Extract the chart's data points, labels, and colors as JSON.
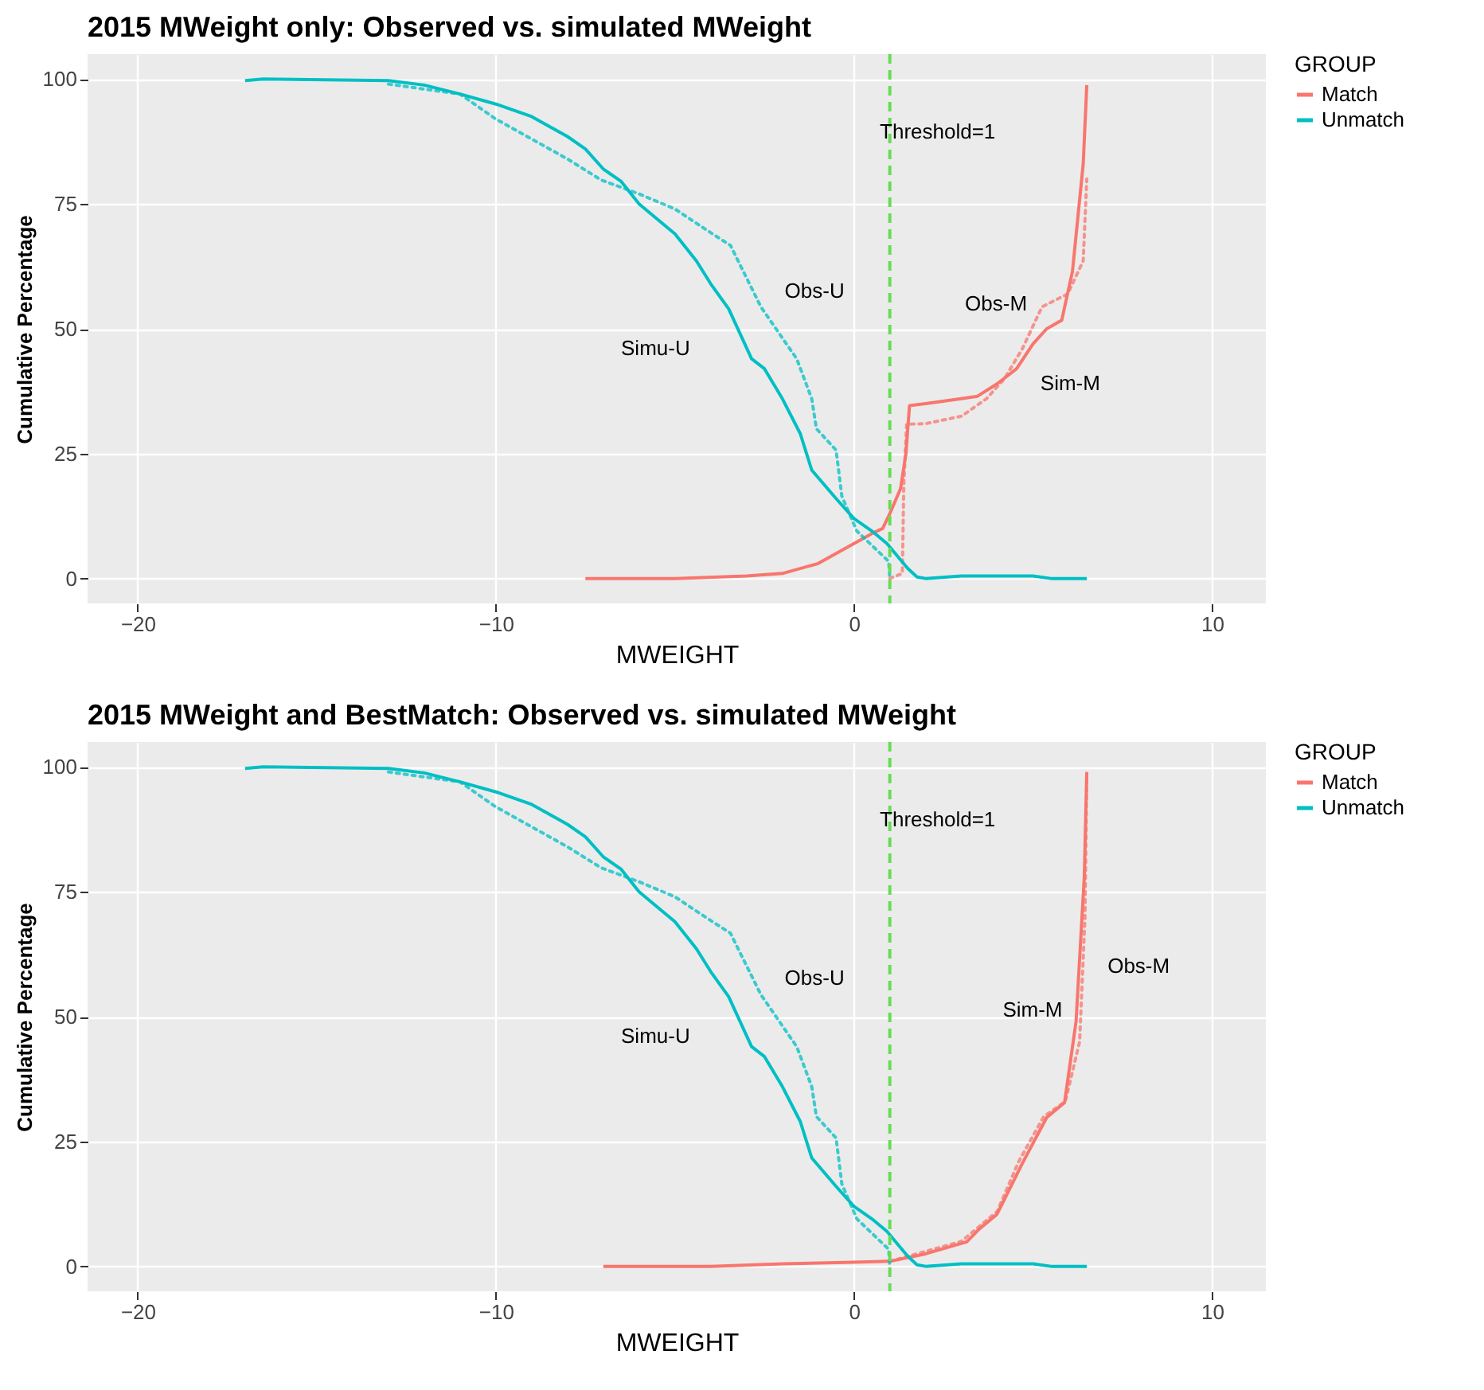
{
  "chart_data": [
    {
      "type": "line",
      "title": "2015 MWeight only: Observed vs. simulated MWeight",
      "xlabel": "MWEIGHT",
      "ylabel": "Cumulative Percentage",
      "legend_title": "GROUP",
      "legend": "right",
      "grid": true,
      "xlim": [
        -21.4,
        11.5
      ],
      "ylim": [
        -5,
        105
      ],
      "xticks": [
        -20,
        -10,
        0,
        10
      ],
      "yticks": [
        0,
        25,
        50,
        75,
        100
      ],
      "series": [
        {
          "name": "Match",
          "color": "#f8766d",
          "line_style": "solid",
          "x": [
            -7.5,
            -5,
            -3,
            -2,
            -1,
            0,
            0.5,
            0.8,
            1.0,
            1.3,
            1.45,
            1.55,
            2,
            3,
            3.45,
            4,
            4.54,
            5,
            5.38,
            5.8,
            6.1,
            6.4,
            6.5
          ],
          "values": [
            0,
            0,
            0.5,
            1,
            3,
            7,
            9,
            10,
            13,
            18,
            25,
            34.6,
            35,
            36,
            36.5,
            39,
            42,
            47,
            50,
            51.7,
            61.5,
            83,
            98.8
          ]
        },
        {
          "color": "#f8766d",
          "line_style": "dotted",
          "x": [
            1.0,
            1.35,
            1.39,
            1.47,
            2,
            3,
            3.7,
            4.2,
            4.7,
            5.25,
            5.97,
            6.4,
            6.5
          ],
          "values": [
            0,
            1,
            18.7,
            30.9,
            31,
            32.5,
            36,
            40,
            46,
            54.4,
            57,
            63.6,
            80
          ]
        },
        {
          "name": "Unmatch",
          "color": "#00bfc4",
          "line_style": "solid",
          "x": [
            -17,
            -16.5,
            -13,
            -12,
            -11,
            -10,
            -9,
            -8,
            -7.5,
            -7,
            -6.5,
            -6,
            -5,
            -4.4,
            -4,
            -3.5,
            -2.86,
            -2.5,
            -2,
            -1.5,
            -1.18,
            -0.5,
            0,
            0.5,
            0.92,
            1.5,
            1.76,
            2,
            3,
            5,
            5.5,
            6.5
          ],
          "values": [
            99.7,
            100,
            99.7,
            98.8,
            97,
            95,
            92.5,
            88.5,
            86,
            82,
            79.5,
            75,
            69,
            63.6,
            59,
            54,
            44,
            42,
            36,
            29,
            21.7,
            16,
            12,
            9.5,
            7,
            2,
            0.3,
            0,
            0.5,
            0.5,
            0,
            0
          ]
        },
        {
          "color": "#00bfc4",
          "line_style": "dotted",
          "x": [
            -13,
            -11,
            -10,
            -9,
            -8,
            -7.06,
            -6,
            -5,
            -4.1,
            -3.45,
            -2.6,
            -1.6,
            -1.18,
            -1.05,
            -0.5,
            -0.34,
            0.08,
            0.97,
            1.0
          ],
          "values": [
            99,
            97,
            92,
            88,
            84,
            79.8,
            77,
            74,
            69.7,
            66.7,
            54.4,
            44,
            36,
            30,
            25.7,
            16.5,
            9.5,
            3.4,
            0
          ]
        }
      ],
      "ref_lines": [
        {
          "axis": "x",
          "value": 1,
          "label": "Threshold=1",
          "color": "#66dd55",
          "line_style": "dashed"
        }
      ],
      "annotations": [
        "Simu-U",
        "Obs-U",
        "Obs-M",
        "Sim-M"
      ]
    },
    {
      "type": "line",
      "title": "2015 MWeight and BestMatch: Observed vs. simulated MWeight",
      "xlabel": "MWEIGHT",
      "ylabel": "Cumulative Percentage",
      "legend_title": "GROUP",
      "legend": "right",
      "grid": true,
      "xlim": [
        -21.4,
        11.5
      ],
      "ylim": [
        -5,
        105
      ],
      "xticks": [
        -20,
        -10,
        0,
        10
      ],
      "yticks": [
        0,
        25,
        50,
        75,
        100
      ],
      "series": [
        {
          "name": "Match",
          "color": "#f8766d",
          "line_style": "solid",
          "x": [
            -7,
            -4,
            -2,
            0,
            1,
            2,
            3.15,
            3.5,
            3.99,
            4.7,
            5.38,
            5.88,
            6.2,
            6.43,
            6.5
          ],
          "values": [
            0,
            0,
            0.5,
            0.8,
            1,
            2.5,
            4.9,
            7.5,
            10.4,
            20.6,
            29.8,
            32.8,
            49,
            78,
            99
          ]
        },
        {
          "color": "#f8766d",
          "line_style": "dotted",
          "x": [
            1,
            2,
            3,
            3.5,
            4,
            4.6,
            5.3,
            5.9,
            6.3,
            6.45,
            6.5
          ],
          "values": [
            1,
            3,
            5,
            8,
            11,
            21,
            30,
            33,
            45,
            70,
            98
          ]
        },
        {
          "name": "Unmatch",
          "color": "#00bfc4",
          "line_style": "solid",
          "x": [
            -17,
            -16.5,
            -13,
            -12,
            -11,
            -10,
            -9,
            -8,
            -7.5,
            -7,
            -6.5,
            -6,
            -5,
            -4.4,
            -4,
            -3.5,
            -2.86,
            -2.5,
            -2,
            -1.5,
            -1.18,
            -0.5,
            0,
            0.5,
            0.92,
            1.5,
            1.76,
            2,
            3,
            5,
            5.5,
            6.5
          ],
          "values": [
            99.7,
            100,
            99.7,
            98.8,
            97,
            95,
            92.5,
            88.5,
            86,
            82,
            79.5,
            75,
            69,
            63.6,
            59,
            54,
            44,
            42,
            36,
            29,
            21.7,
            16,
            12,
            9.5,
            7,
            2,
            0.3,
            0,
            0.5,
            0.5,
            0,
            0
          ]
        },
        {
          "color": "#00bfc4",
          "line_style": "dotted",
          "x": [
            -13,
            -11,
            -10,
            -9,
            -8,
            -7.06,
            -6,
            -5,
            -4.1,
            -3.45,
            -2.6,
            -1.6,
            -1.18,
            -1.05,
            -0.5,
            -0.34,
            0.08,
            0.97,
            1.0
          ],
          "values": [
            99,
            97,
            92,
            88,
            84,
            79.8,
            77,
            74,
            69.7,
            66.7,
            54.4,
            44,
            36,
            30,
            25.7,
            16.5,
            9.5,
            3.4,
            0
          ]
        }
      ],
      "ref_lines": [
        {
          "axis": "x",
          "value": 1,
          "label": "Threshold=1",
          "color": "#66dd55",
          "line_style": "dashed"
        }
      ],
      "annotations": [
        "Simu-U",
        "Obs-U",
        "Sim-M",
        "Obs-M"
      ]
    }
  ]
}
